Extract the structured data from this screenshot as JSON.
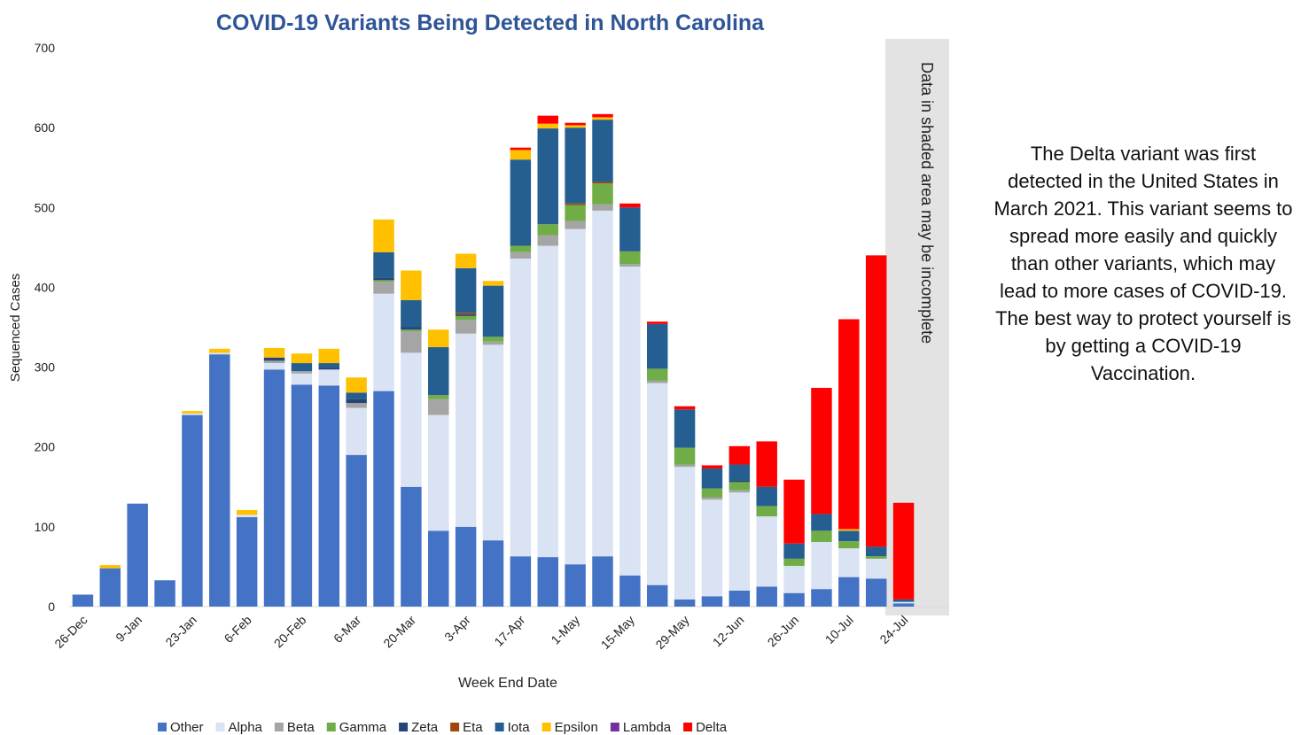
{
  "chart_data": {
    "type": "stacked_bar",
    "title": "COVID-19 Variants Being Detected in North Carolina",
    "x_label": "Week End Date",
    "y_label": "Sequenced Cases",
    "shaded_note": "Data in shaded area may be incomplete",
    "annotation": "The Delta variant was first detected in the United States in March 2021. This variant seems to spread more easily and quickly than other variants, which may lead to more cases of COVID-19. The best way to protect yourself is by getting a COVID-19 Vaccination.",
    "categories": [
      "26-Dec",
      null,
      "9-Jan",
      null,
      "23-Jan",
      null,
      "6-Feb",
      null,
      "20-Feb",
      null,
      "6-Mar",
      null,
      "20-Mar",
      null,
      "3-Apr",
      null,
      "17-Apr",
      null,
      "1-May",
      null,
      "15-May",
      null,
      "29-May",
      null,
      "12-Jun",
      null,
      "26-Jun",
      null,
      "10-Jul",
      null,
      "24-Jul"
    ],
    "ylim": [
      0,
      700
    ],
    "yticks": [
      0,
      100,
      200,
      300,
      400,
      500,
      600,
      700
    ],
    "series": [
      {
        "name": "Other",
        "color": "#4472c4",
        "values": [
          15,
          48,
          129,
          33,
          240,
          316,
          112,
          297,
          278,
          277,
          190,
          270,
          150,
          95,
          100,
          83,
          63,
          62,
          53,
          63,
          39,
          27,
          9,
          13,
          20,
          25,
          17,
          22,
          37,
          35,
          4
        ]
      },
      {
        "name": "Alpha",
        "color": "#dae3f3",
        "values": [
          0,
          0,
          0,
          0,
          2,
          2,
          3,
          8,
          14,
          20,
          59,
          122,
          168,
          145,
          242,
          245,
          373,
          390,
          420,
          433,
          387,
          253,
          166,
          121,
          123,
          88,
          34,
          59,
          36,
          25,
          2
        ]
      },
      {
        "name": "Beta",
        "color": "#a5a5a5",
        "values": [
          0,
          0,
          0,
          0,
          0,
          0,
          0,
          3,
          3,
          0,
          6,
          15,
          27,
          20,
          17,
          4,
          8,
          13,
          10,
          8,
          3,
          3,
          3,
          3,
          3,
          0,
          0,
          0,
          0,
          0,
          0
        ]
      },
      {
        "name": "Gamma",
        "color": "#70ad47",
        "values": [
          0,
          0,
          0,
          0,
          0,
          0,
          0,
          0,
          0,
          0,
          0,
          2,
          2,
          5,
          5,
          6,
          8,
          14,
          20,
          26,
          16,
          15,
          21,
          11,
          10,
          13,
          9,
          14,
          9,
          3,
          0
        ]
      },
      {
        "name": "Zeta",
        "color": "#264478",
        "values": [
          0,
          0,
          0,
          0,
          0,
          0,
          0,
          4,
          0,
          2,
          5,
          3,
          3,
          0,
          2,
          0,
          0,
          0,
          0,
          0,
          0,
          0,
          0,
          0,
          2,
          0,
          0,
          0,
          0,
          0,
          0
        ]
      },
      {
        "name": "Eta",
        "color": "#9e480e",
        "values": [
          0,
          0,
          0,
          0,
          0,
          0,
          0,
          0,
          0,
          0,
          0,
          0,
          0,
          0,
          2,
          0,
          0,
          0,
          2,
          2,
          0,
          0,
          0,
          0,
          0,
          0,
          0,
          0,
          0,
          0,
          0
        ]
      },
      {
        "name": "Iota",
        "color": "#255e91",
        "values": [
          0,
          0,
          0,
          0,
          0,
          0,
          0,
          0,
          10,
          6,
          8,
          32,
          34,
          60,
          56,
          64,
          108,
          120,
          95,
          78,
          55,
          56,
          48,
          25,
          20,
          24,
          19,
          21,
          13,
          12,
          3
        ]
      },
      {
        "name": "Epsilon",
        "color": "#ffc000",
        "values": [
          0,
          4,
          0,
          0,
          3,
          5,
          6,
          12,
          12,
          18,
          19,
          41,
          37,
          22,
          18,
          6,
          12,
          6,
          3,
          3,
          0,
          0,
          0,
          0,
          0,
          0,
          0,
          0,
          2,
          0,
          0
        ]
      },
      {
        "name": "Lambda",
        "color": "#7030a0",
        "values": [
          0,
          0,
          0,
          0,
          0,
          0,
          0,
          0,
          0,
          0,
          0,
          0,
          0,
          0,
          0,
          0,
          0,
          0,
          0,
          0,
          0,
          0,
          0,
          0,
          0,
          0,
          0,
          0,
          0,
          0,
          0
        ]
      },
      {
        "name": "Delta",
        "color": "#ff0000",
        "values": [
          0,
          0,
          0,
          0,
          0,
          0,
          0,
          0,
          0,
          0,
          0,
          0,
          0,
          0,
          0,
          0,
          3,
          10,
          3,
          4,
          5,
          3,
          4,
          4,
          23,
          57,
          80,
          158,
          263,
          365,
          121
        ]
      }
    ]
  }
}
